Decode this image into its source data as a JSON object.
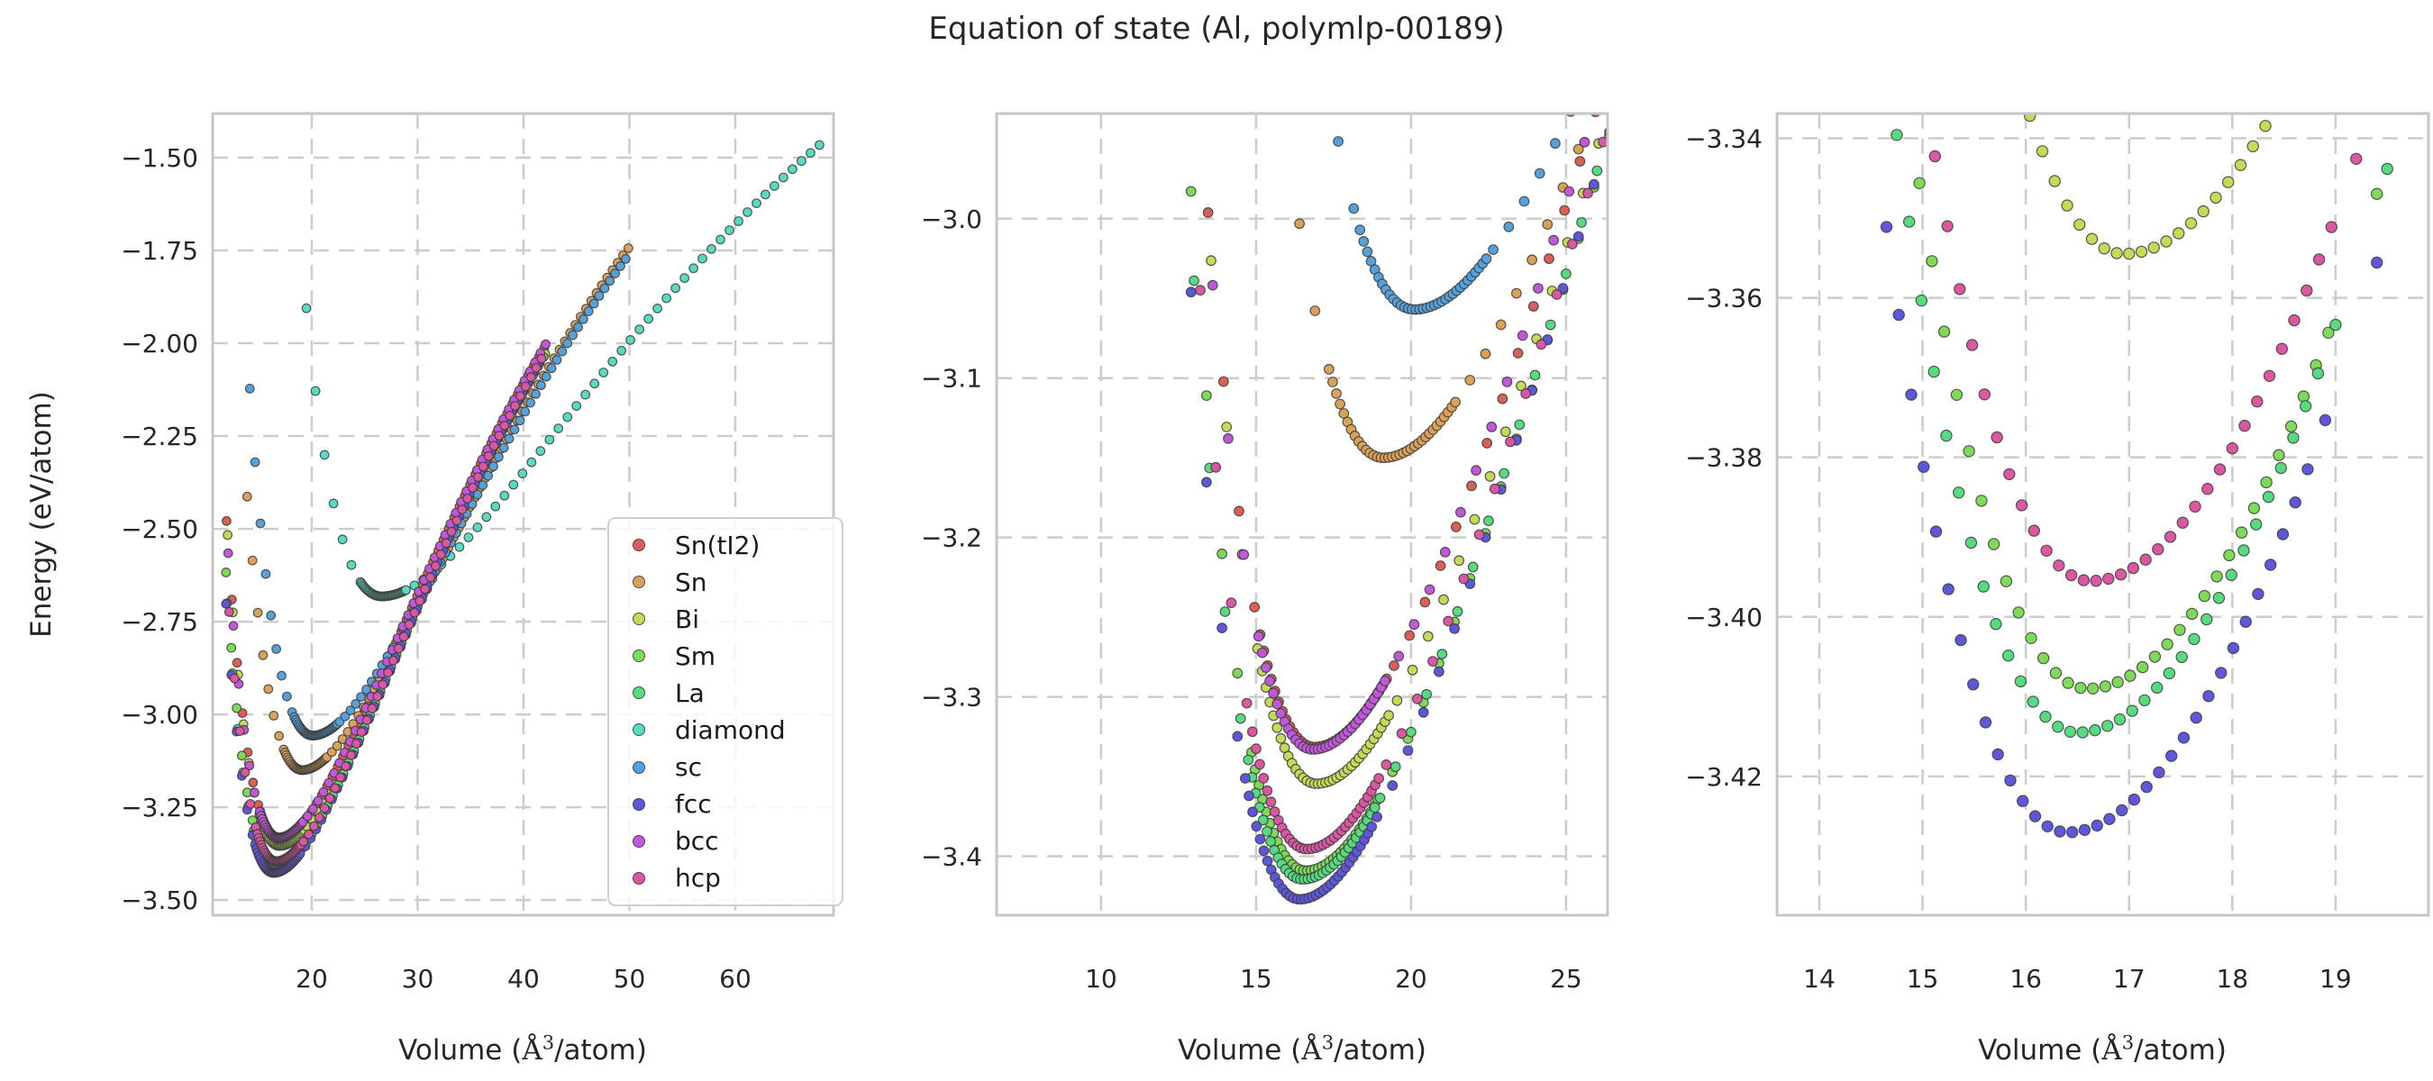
{
  "title": "Equation of state (Al, polymlp-00189)",
  "axes": {
    "ylabel": "Energy (eV/atom)",
    "xlabel": {
      "prefix": "Volume (",
      "ang": "Å",
      "sup": "3",
      "suffix": "/atom)",
      "full": "Volume (Å³/atom)"
    }
  },
  "legend": {
    "entries": [
      "Sn(tI2)",
      "Sn",
      "Bi",
      "Sm",
      "La",
      "diamond",
      "sc",
      "fcc",
      "bcc",
      "hcp"
    ]
  },
  "style": {
    "grid_color": "#cccccc",
    "frame_color": "#c6c6c6",
    "marker_edge_color": "rgba(60,60,60,0.85)",
    "background": "#ffffff",
    "text_color": "#262626"
  },
  "chart_data": {
    "type": "scatter",
    "title": "Equation of state (Al, polymlp-00189)",
    "xlabel": "Volume (Å³/atom)",
    "ylabel": "Energy (eV/atom)",
    "grid": "dashed, on",
    "legend_position": "lower right of first panel",
    "model": "Energy-volume (Rydberg/Morse-type) curve per structure: E(V) = e0 + |e0|*(1-(1+x)*exp(-x)), x = a*(V^(1/3) - v0^(1/3)); a = a_left if V < v0 else a_right. Points sampled on a coarse volume grid (coarse_step) plus a fine grid (fine_step) inside [fine_lo, fine_hi] around each minimum, reproducing the dot spacing seen in the figure.",
    "defaults": {
      "a_left": 2.1,
      "a_right": 1.5,
      "fine_step": 0.12,
      "fine_halfwidth_lo": 1.75,
      "fine_halfwidth_hi": 2.35
    },
    "panels": [
      {
        "id": "overview",
        "xlim": [
          10.64,
          69.28
        ],
        "ylim": [
          -3.541,
          -1.381
        ],
        "xticks": [
          {
            "v": 20,
            "label": "20"
          },
          {
            "v": 30,
            "label": "30"
          },
          {
            "v": 40,
            "label": "40"
          },
          {
            "v": 50,
            "label": "50"
          },
          {
            "v": 60,
            "label": "60"
          }
        ],
        "yticks": [
          {
            "v": -1.5,
            "label": "−1.50"
          },
          {
            "v": -1.75,
            "label": "−1.75"
          },
          {
            "v": -2.0,
            "label": "−2.00"
          },
          {
            "v": -2.25,
            "label": "−2.25"
          },
          {
            "v": -2.5,
            "label": "−2.50"
          },
          {
            "v": -2.75,
            "label": "−2.75"
          },
          {
            "v": -3.0,
            "label": "−3.00"
          },
          {
            "v": -3.25,
            "label": "−3.25"
          },
          {
            "v": -3.5,
            "label": "−3.50"
          }
        ],
        "marker_radius": 4.8
      },
      {
        "id": "zoom-mid",
        "xlim": [
          6.63,
          26.34
        ],
        "ylim": [
          -3.437,
          -2.934
        ],
        "xticks": [
          {
            "v": 10,
            "label": "10"
          },
          {
            "v": 15,
            "label": "15"
          },
          {
            "v": 20,
            "label": "20"
          },
          {
            "v": 25,
            "label": "25"
          }
        ],
        "yticks": [
          {
            "v": -3.0,
            "label": "−3.0"
          },
          {
            "v": -3.1,
            "label": "−3.1"
          },
          {
            "v": -3.2,
            "label": "−3.2"
          },
          {
            "v": -3.3,
            "label": "−3.3"
          },
          {
            "v": -3.4,
            "label": "−3.4"
          }
        ],
        "marker_radius": 5.3
      },
      {
        "id": "zoom-min",
        "xlim": [
          13.59,
          19.9
        ],
        "ylim": [
          -3.4374,
          -3.3369
        ],
        "xticks": [
          {
            "v": 14,
            "label": "14"
          },
          {
            "v": 15,
            "label": "15"
          },
          {
            "v": 16,
            "label": "16"
          },
          {
            "v": 17,
            "label": "17"
          },
          {
            "v": 18,
            "label": "18"
          },
          {
            "v": 19,
            "label": "19"
          }
        ],
        "yticks": [
          {
            "v": -3.34,
            "label": "−3.34"
          },
          {
            "v": -3.36,
            "label": "−3.36"
          },
          {
            "v": -3.38,
            "label": "−3.38"
          },
          {
            "v": -3.4,
            "label": "−3.40"
          },
          {
            "v": -3.42,
            "label": "−3.42"
          }
        ],
        "marker_radius": 6.1
      }
    ],
    "series": [
      {
        "name": "Sn(tI2)",
        "color": "#db5f57",
        "v0": 16.88,
        "e0": -3.3315,
        "v_lo": 11.95,
        "v_hi": 42.3,
        "coarse_step": 0.5
      },
      {
        "name": "Sn",
        "color": "#dba157",
        "v0": 19.1,
        "e0": -3.15,
        "v_lo": 13.9,
        "v_hi": 50.0,
        "coarse_step": 0.5
      },
      {
        "name": "Bi",
        "color": "#c3db57",
        "v0": 16.95,
        "e0": -3.3545,
        "v_lo": 12.05,
        "v_hi": 42.4,
        "coarse_step": 0.5
      },
      {
        "name": "Sm",
        "color": "#7fdb57",
        "v0": 16.6,
        "e0": -3.409,
        "v_lo": 11.9,
        "v_hi": 42.0,
        "coarse_step": 0.5
      },
      {
        "name": "La",
        "color": "#57db80",
        "v0": 16.5,
        "e0": -3.4145,
        "v_lo": 12.0,
        "v_hi": 41.9,
        "coarse_step": 0.5
      },
      {
        "name": "diamond",
        "color": "#57dbc3",
        "v0": 26.6,
        "e0": -2.682,
        "v_lo": 19.5,
        "v_hi": 68.4,
        "coarse_step": 0.85,
        "a_right": 1.4,
        "fine_lo": 24.7,
        "fine_hi": 28.9
      },
      {
        "name": "sc",
        "color": "#57a1db",
        "v0": 20.1,
        "e0": -3.057,
        "v_lo": 14.15,
        "v_hi": 50.0,
        "coarse_step": 0.5
      },
      {
        "name": "fcc",
        "color": "#5f57db",
        "v0": 16.4,
        "e0": -3.427,
        "v_lo": 11.9,
        "v_hi": 41.8,
        "coarse_step": 0.5
      },
      {
        "name": "bcc",
        "color": "#c357db",
        "v0": 16.83,
        "e0": -3.333,
        "v_lo": 12.1,
        "v_hi": 42.2,
        "coarse_step": 0.5
      },
      {
        "name": "hcp",
        "color": "#db57a1",
        "v0": 16.63,
        "e0": -3.3955,
        "v_lo": 12.2,
        "v_hi": 42.1,
        "coarse_step": 0.5
      }
    ],
    "minima_summary": [
      {
        "structure": "fcc",
        "v0": 16.4,
        "e0": -3.427
      },
      {
        "structure": "La",
        "v0": 16.5,
        "e0": -3.4145
      },
      {
        "structure": "Sm",
        "v0": 16.6,
        "e0": -3.409
      },
      {
        "structure": "hcp",
        "v0": 16.63,
        "e0": -3.3955
      },
      {
        "structure": "bcc",
        "v0": 16.83,
        "e0": -3.333
      },
      {
        "structure": "Sn(tI2)",
        "v0": 16.88,
        "e0": -3.3315
      },
      {
        "structure": "Bi",
        "v0": 16.95,
        "e0": -3.3545
      },
      {
        "structure": "Sn",
        "v0": 19.1,
        "e0": -3.15
      },
      {
        "structure": "sc",
        "v0": 20.1,
        "e0": -3.057
      },
      {
        "structure": "diamond",
        "v0": 26.6,
        "e0": -2.682
      }
    ]
  }
}
